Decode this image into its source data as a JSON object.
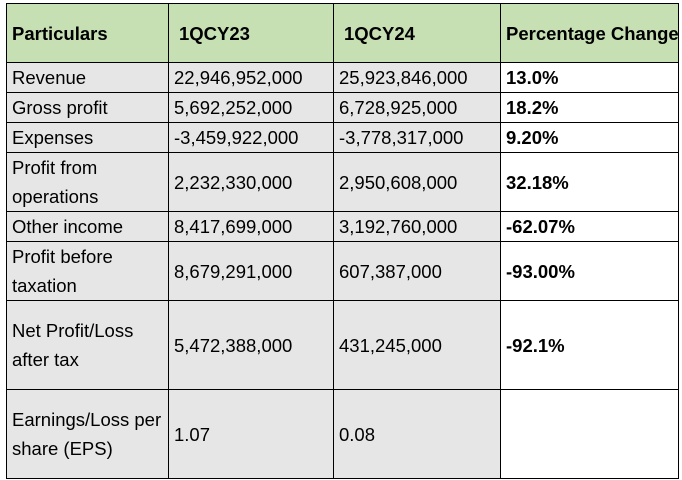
{
  "table": {
    "headers": [
      "Particulars",
      "1QCY23",
      "1QCY24",
      "Percentage Change"
    ],
    "rows": [
      {
        "particular": "Revenue",
        "q23": "22,946,952,000",
        "q24": "25,923,846,000",
        "change": "13.0%"
      },
      {
        "particular": "Gross profit",
        "q23": "5,692,252,000",
        "q24": "6,728,925,000",
        "change": "18.2%"
      },
      {
        "particular": "Expenses",
        "q23": "-3,459,922,000",
        "q24": "-3,778,317,000",
        "change": "9.20%"
      },
      {
        "particular": "Profit from operations",
        "q23": "2,232,330,000",
        "q24": " 2,950,608,000",
        "change": "32.18%"
      },
      {
        "particular": "Other income",
        "q23": "8,417,699,000",
        "q24": "3,192,760,000",
        "change": "-62.07%"
      },
      {
        "particular": "Profit before taxation",
        "q23": "8,679,291,000",
        "q24": " 607,387,000",
        "change": "-93.00%"
      },
      {
        "particular": "Net Profit/Loss after tax",
        "q23": "5,472,388,000",
        "q24": "431,245,000",
        "change": "-92.1%"
      },
      {
        "particular": "Earnings/Loss per share (EPS)",
        "q23": "1.07",
        "q24": "0.08",
        "change": ""
      }
    ]
  },
  "colors": {
    "header_bg": "#c6e0b4",
    "body_bg": "#e7e6e6",
    "change_bg": "#ffffff",
    "border": "#000000"
  }
}
